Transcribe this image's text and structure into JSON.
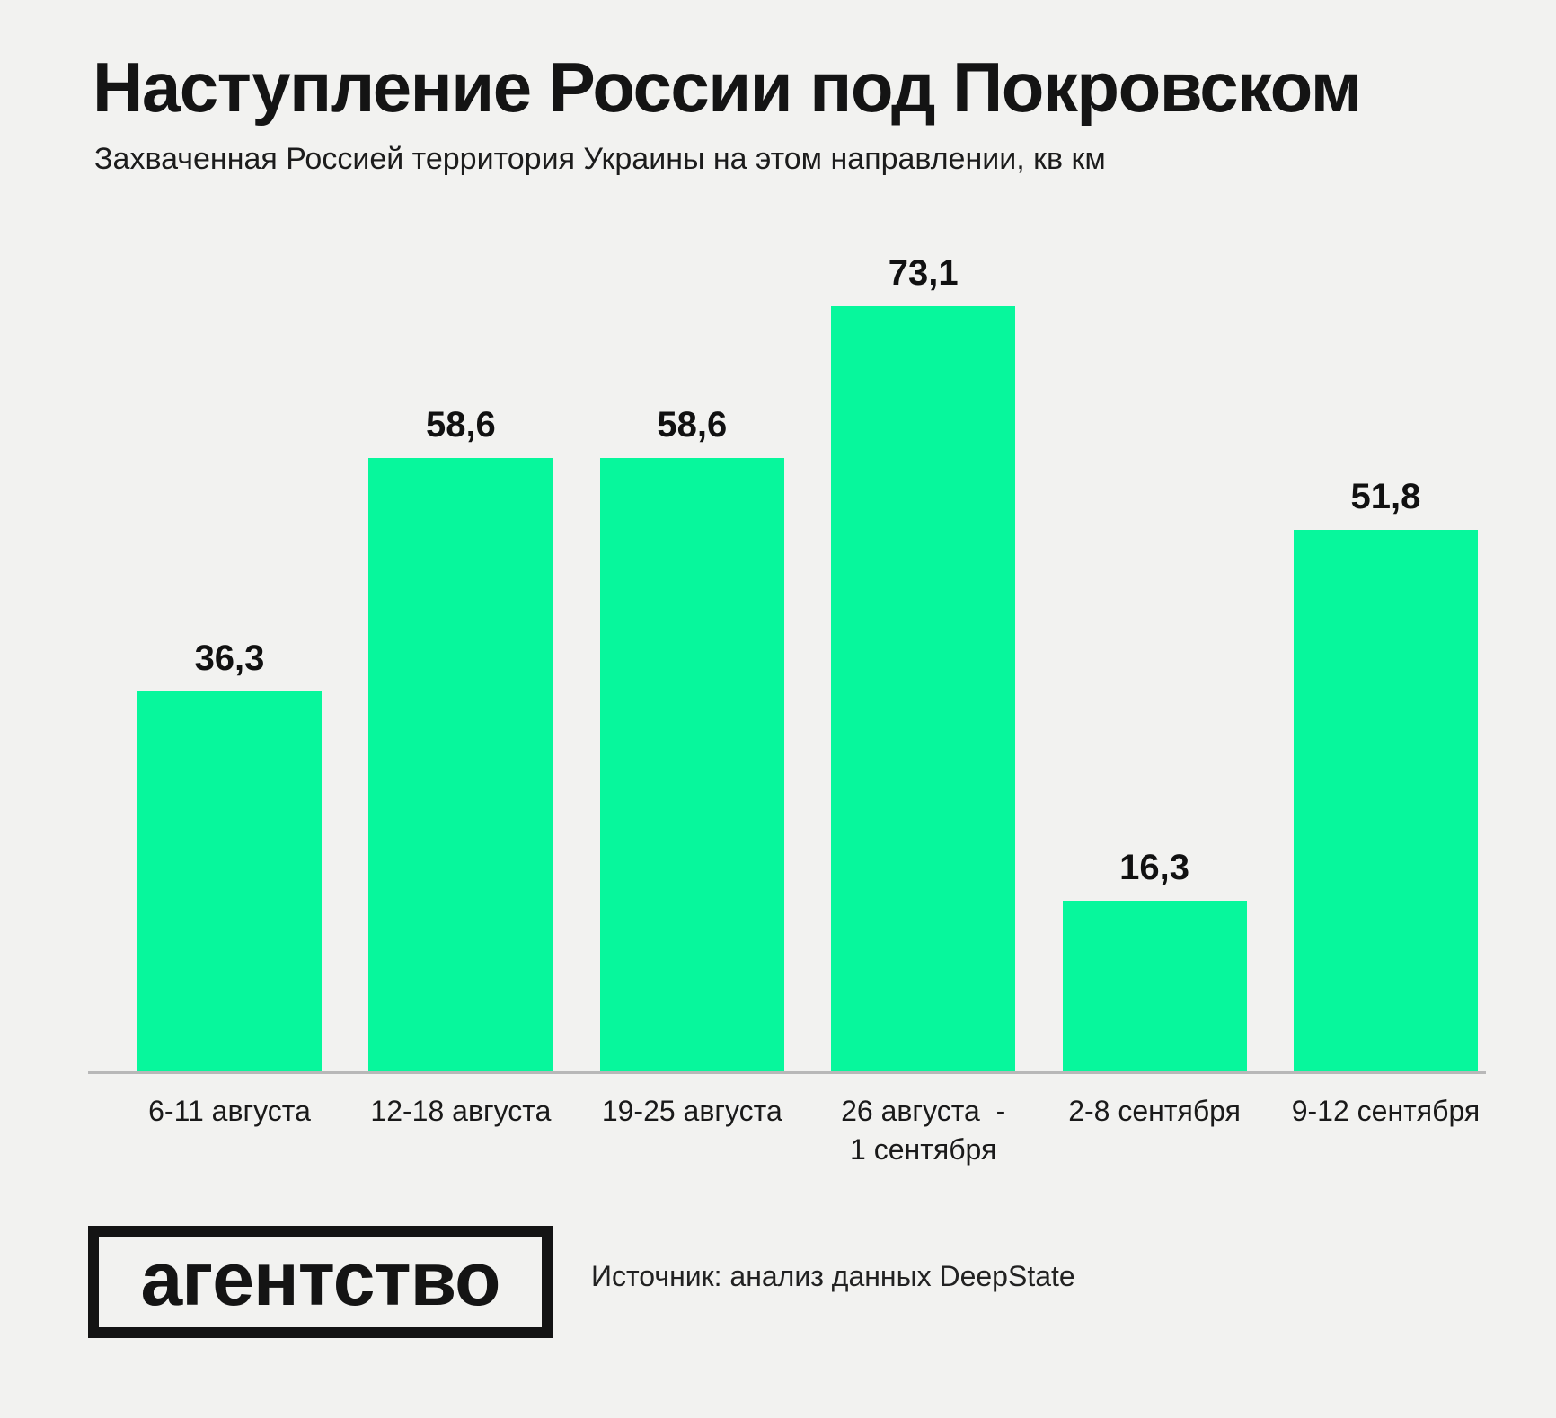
{
  "title": "Наступление России под Покровском",
  "subtitle": "Захваченная Россией территория Украины на этом направлении, кв км",
  "chart_data": {
    "type": "bar",
    "title": "Наступление России под Покровском",
    "subtitle": "Захваченная Россией территория Украины на этом направлении, кв км",
    "categories": [
      "6-11 августа",
      "12-18 августа",
      "19-25 августа",
      "26 августа  -\n1 сентября",
      "2-8 сентября",
      "9-12 сентября"
    ],
    "values": [
      36.3,
      58.6,
      58.6,
      73.1,
      16.3,
      51.8
    ],
    "value_labels": [
      "36,3",
      "58,6",
      "58,6",
      "73,1",
      "16,3",
      "51,8"
    ],
    "unit": "кв км",
    "ylim": [
      0,
      80
    ],
    "grid": false,
    "legend": "none",
    "value_labels_position": "above-bars",
    "bar_color": "#07f79c"
  },
  "footer": {
    "logo_text": "агентство",
    "source_text": "Источник: анализ данных DeepState"
  },
  "colors": {
    "background": "#f2f2f0",
    "bar": "#07f79c",
    "text": "#141414",
    "axis_line": "#b8b8b8"
  }
}
